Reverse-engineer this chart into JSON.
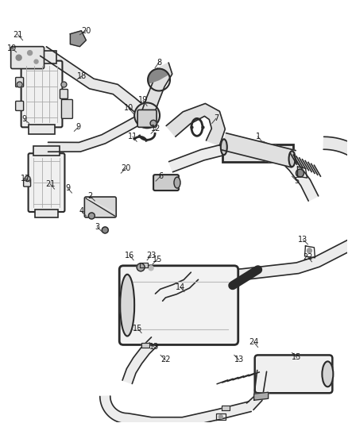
{
  "bg_color": "#ffffff",
  "lc": "#2a2a2a",
  "lc2": "#555555",
  "label_fs": 7,
  "fig_w": 4.38,
  "fig_h": 5.33,
  "dpi": 100
}
